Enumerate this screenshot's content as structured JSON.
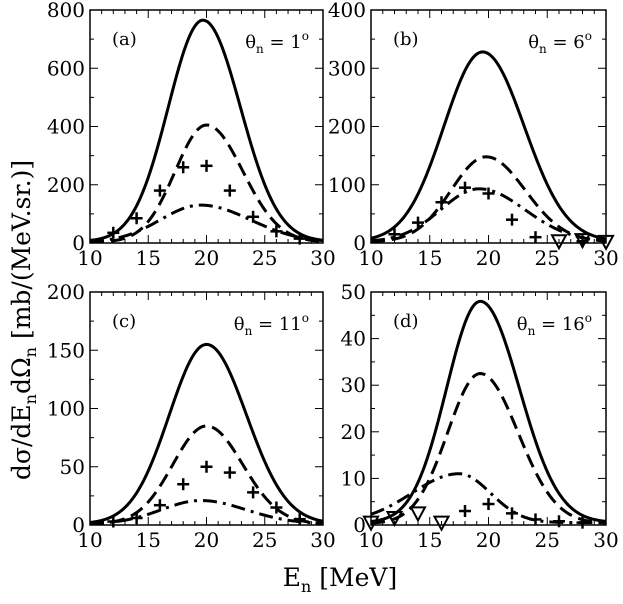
{
  "figure": {
    "ylabel_main": "dσ/dE",
    "ylabel_sub1": "n",
    "ylabel_mid": "dΩ",
    "ylabel_sub2": "n",
    "ylabel_unit": " [mb/(MeV.sr.)]",
    "xlabel_main": "E",
    "xlabel_sub": "n",
    "xlabel_unit": " [MeV]"
  },
  "chart_data": [
    {
      "type": "line",
      "panel_label": "(a)",
      "angle_label": {
        "theta": "θ",
        "sub": "n",
        "value": " = 1",
        "sup": "o"
      },
      "xlim": [
        10,
        30
      ],
      "ylim": [
        0,
        800
      ],
      "xticks": [
        10,
        15,
        20,
        25,
        30
      ],
      "yticks": [
        0,
        200,
        400,
        600,
        800
      ],
      "series": [
        {
          "name": "solid",
          "style": "solid",
          "peak": 765,
          "center": 19.7,
          "sigma": 3.1,
          "tail_lo": 2.6,
          "tail_hi": 2.8,
          "base": 5
        },
        {
          "name": "dashed",
          "style": "dashed",
          "peak": 405,
          "center": 20.0,
          "sigma": 2.9,
          "tail_lo": 2.5,
          "tail_hi": 2.9,
          "base": 3
        },
        {
          "name": "dash-dot",
          "style": "dashdot",
          "peak": 130,
          "center": 19.5,
          "sigma": 3.6,
          "tail_lo": 2.6,
          "tail_hi": 3.2,
          "base": 2
        }
      ],
      "points_plus": [
        [
          12,
          35
        ],
        [
          14,
          85
        ],
        [
          16,
          180
        ],
        [
          18,
          260
        ],
        [
          20,
          265
        ],
        [
          22,
          180
        ],
        [
          24,
          90
        ],
        [
          26,
          40
        ],
        [
          28,
          15
        ]
      ],
      "points_triangle": []
    },
    {
      "type": "line",
      "panel_label": "(b)",
      "angle_label": {
        "theta": "θ",
        "sub": "n",
        "value": " = 6",
        "sup": "o"
      },
      "xlim": [
        10,
        30
      ],
      "ylim": [
        0,
        400
      ],
      "xticks": [
        10,
        15,
        20,
        25,
        30
      ],
      "yticks": [
        0,
        100,
        200,
        300,
        400
      ],
      "series": [
        {
          "name": "solid",
          "style": "solid",
          "peak": 328,
          "center": 19.5,
          "sigma": 3.3,
          "tail_lo": 2.7,
          "tail_hi": 2.9,
          "base": 3
        },
        {
          "name": "dashed",
          "style": "dashed",
          "peak": 148,
          "center": 19.8,
          "sigma": 3.1,
          "tail_lo": 2.6,
          "tail_hi": 2.9,
          "base": 2
        },
        {
          "name": "dash-dot",
          "style": "dashdot",
          "peak": 93,
          "center": 19.2,
          "sigma": 3.4,
          "tail_lo": 2.6,
          "tail_hi": 3.1,
          "base": 2
        }
      ],
      "points_plus": [
        [
          12,
          15
        ],
        [
          14,
          35
        ],
        [
          16,
          70
        ],
        [
          18,
          95
        ],
        [
          20,
          85
        ],
        [
          22,
          40
        ],
        [
          24,
          10
        ],
        [
          28,
          3
        ]
      ],
      "points_triangle": [
        [
          26,
          3
        ],
        [
          28,
          5
        ],
        [
          30,
          2
        ]
      ]
    },
    {
      "type": "line",
      "panel_label": "(c)",
      "angle_label": {
        "theta": "θ",
        "sub": "n",
        "value": " = 11",
        "sup": "o"
      },
      "xlim": [
        10,
        30
      ],
      "ylim": [
        0,
        200
      ],
      "xticks": [
        10,
        15,
        20,
        25,
        30
      ],
      "yticks": [
        0,
        50,
        100,
        150,
        200
      ],
      "series": [
        {
          "name": "solid",
          "style": "solid",
          "peak": 155,
          "center": 20.0,
          "sigma": 3.2,
          "tail_lo": 2.7,
          "tail_hi": 2.9,
          "base": 1
        },
        {
          "name": "dashed",
          "style": "dashed",
          "peak": 85,
          "center": 20.0,
          "sigma": 3.0,
          "tail_lo": 2.6,
          "tail_hi": 2.8,
          "base": 1
        },
        {
          "name": "dash-dot",
          "style": "dashdot",
          "peak": 21,
          "center": 19.5,
          "sigma": 3.5,
          "tail_lo": 2.6,
          "tail_hi": 3.0,
          "base": 1
        }
      ],
      "points_plus": [
        [
          12,
          3
        ],
        [
          14,
          6
        ],
        [
          16,
          17
        ],
        [
          18,
          35
        ],
        [
          20,
          50
        ],
        [
          22,
          45
        ],
        [
          24,
          28
        ],
        [
          26,
          15
        ],
        [
          28,
          5
        ]
      ],
      "points_triangle": []
    },
    {
      "type": "line",
      "panel_label": "(d)",
      "angle_label": {
        "theta": "θ",
        "sub": "n",
        "value": " = 16",
        "sup": "o"
      },
      "xlim": [
        10,
        30
      ],
      "ylim": [
        0,
        50
      ],
      "xticks": [
        10,
        15,
        20,
        25,
        30
      ],
      "yticks": [
        0,
        10,
        20,
        30,
        40,
        50
      ],
      "series": [
        {
          "name": "solid",
          "style": "solid",
          "peak": 48,
          "center": 19.3,
          "sigma": 3.1,
          "tail_lo": 2.5,
          "tail_hi": 2.9,
          "base": 0.5
        },
        {
          "name": "dashed",
          "style": "dashed",
          "peak": 32.5,
          "center": 19.3,
          "sigma": 3.0,
          "tail_lo": 2.5,
          "tail_hi": 2.9,
          "base": 0.3
        },
        {
          "name": "dash-dot",
          "style": "dashdot",
          "peak": 11,
          "center": 17.5,
          "sigma": 4.5,
          "tail_lo": 2.4,
          "tail_hi": 1.6,
          "base": 0.5
        }
      ],
      "points_plus": [
        [
          18,
          3
        ],
        [
          20,
          4.5
        ],
        [
          22,
          2.5
        ],
        [
          24,
          1.2
        ],
        [
          26,
          0.8
        ],
        [
          28,
          0.5
        ]
      ],
      "points_triangle": [
        [
          10,
          0.5
        ],
        [
          12,
          1.5
        ],
        [
          14,
          2.5
        ],
        [
          16,
          0.5
        ]
      ]
    }
  ]
}
